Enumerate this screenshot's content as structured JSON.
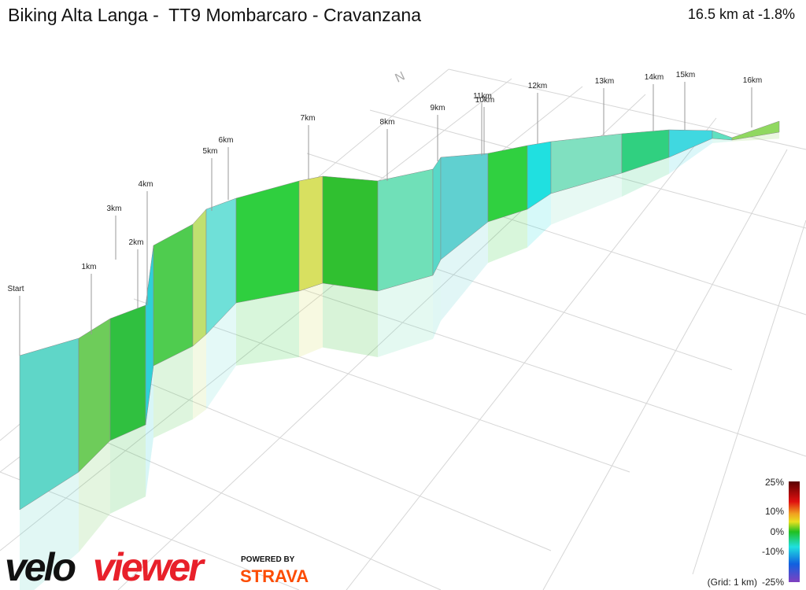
{
  "header": {
    "title": "Biking Alta Langa -  TT9 Mombarcaro - Cravanzana",
    "summary": "16.5 km at -1.8%"
  },
  "compass": "N",
  "markers": [
    "Start",
    "1km",
    "2km",
    "3km",
    "4km",
    "5km",
    "6km",
    "7km",
    "8km",
    "9km",
    "10km",
    "11km",
    "12km",
    "13km",
    "14km",
    "15km",
    "16km"
  ],
  "legend": {
    "labels": [
      "25%",
      "10%",
      "0%",
      "-10%",
      "-25%"
    ],
    "grid_note": "(Grid: 1 km)"
  },
  "branding": {
    "logo_left": "velo",
    "logo_right": "viewer",
    "powered_by": "POWERED BY",
    "partner": "STRAVA"
  }
}
